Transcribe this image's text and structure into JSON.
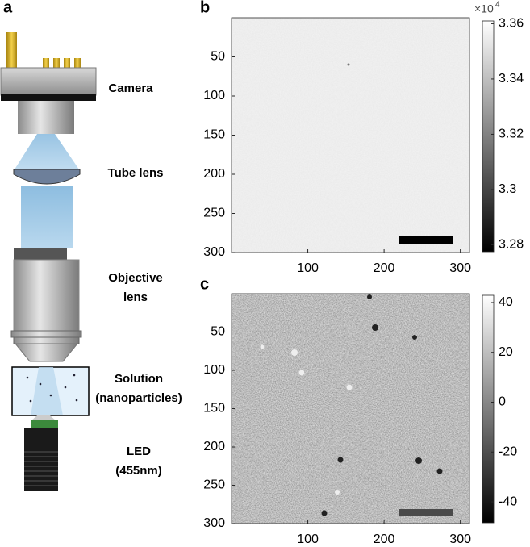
{
  "schematic": {
    "panel_label": "a",
    "labels": [
      [
        "Camera"
      ],
      [
        "Tube lens"
      ],
      [
        "Objective",
        "lens"
      ],
      [
        "Solution",
        "(nanoparticles)"
      ],
      [
        "LED",
        "(455nm)"
      ]
    ]
  },
  "chart_data": [
    {
      "type": "heatmap",
      "panel_label": "b",
      "xlim": [
        0,
        312
      ],
      "ylim": [
        0,
        300
      ],
      "y_reversed": true,
      "xticks": [
        100,
        200,
        300
      ],
      "yticks": [
        50,
        100,
        150,
        200,
        250,
        300
      ],
      "colormap": "gray",
      "clim": [
        3.2775,
        3.361
      ],
      "cticks": [
        3.28,
        3.3,
        3.32,
        3.34,
        3.36
      ],
      "color_scale": {
        "base": "×10",
        "exponent": "4"
      }
    },
    {
      "type": "heatmap",
      "panel_label": "c",
      "xlim": [
        0,
        312
      ],
      "ylim": [
        0,
        300
      ],
      "y_reversed": true,
      "xticks": [
        100,
        200,
        300
      ],
      "yticks": [
        50,
        100,
        150,
        200,
        250,
        300
      ],
      "colormap": "gray",
      "clim": [
        -48.4,
        42.9
      ],
      "cticks": [
        -40,
        -20,
        0,
        20,
        40
      ]
    }
  ]
}
